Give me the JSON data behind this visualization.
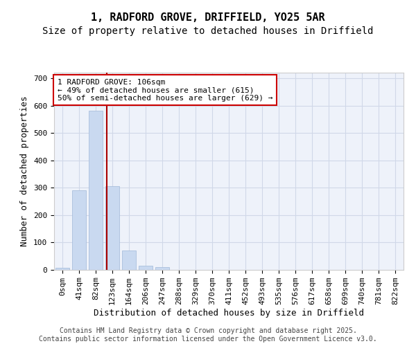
{
  "title_line1": "1, RADFORD GROVE, DRIFFIELD, YO25 5AR",
  "title_line2": "Size of property relative to detached houses in Driffield",
  "xlabel": "Distribution of detached houses by size in Driffield",
  "ylabel": "Number of detached properties",
  "bar_color": "#c9d9f0",
  "bar_edgecolor": "#a0b8d8",
  "grid_color": "#d0d8e8",
  "background_color": "#eef2fa",
  "bin_labels": [
    "0sqm",
    "41sqm",
    "82sqm",
    "123sqm",
    "164sqm",
    "206sqm",
    "247sqm",
    "288sqm",
    "329sqm",
    "370sqm",
    "411sqm",
    "452sqm",
    "493sqm",
    "535sqm",
    "576sqm",
    "617sqm",
    "658sqm",
    "699sqm",
    "740sqm",
    "781sqm",
    "822sqm"
  ],
  "bar_values": [
    8,
    290,
    580,
    305,
    72,
    15,
    10,
    0,
    0,
    0,
    0,
    0,
    0,
    0,
    0,
    0,
    0,
    0,
    0,
    0,
    0
  ],
  "ylim": [
    0,
    720
  ],
  "yticks": [
    0,
    100,
    200,
    300,
    400,
    500,
    600,
    700
  ],
  "red_line_x": 2.65,
  "annotation_text": "1 RADFORD GROVE: 106sqm\n← 49% of detached houses are smaller (615)\n50% of semi-detached houses are larger (629) →",
  "annotation_box_color": "#ffffff",
  "annotation_box_edgecolor": "#cc0000",
  "red_line_color": "#aa0000",
  "footer_text": "Contains HM Land Registry data © Crown copyright and database right 2025.\nContains public sector information licensed under the Open Government Licence v3.0.",
  "title_fontsize": 11,
  "subtitle_fontsize": 10,
  "axis_label_fontsize": 9,
  "tick_fontsize": 8,
  "annotation_fontsize": 8,
  "footer_fontsize": 7
}
